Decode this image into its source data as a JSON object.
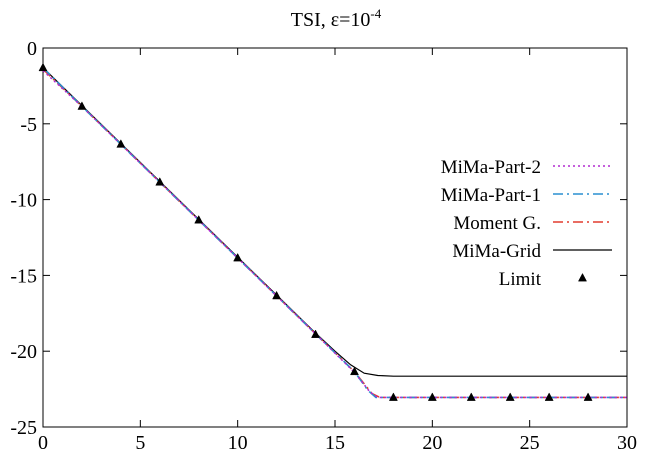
{
  "chart_data": {
    "type": "line",
    "title": {
      "base": "TSI, ε=10",
      "sup": "-4"
    },
    "xlabel": "",
    "ylabel": "",
    "xlim": [
      0,
      30
    ],
    "ylim": [
      -25,
      0
    ],
    "xticks": [
      0,
      5,
      10,
      15,
      20,
      25,
      30
    ],
    "yticks": [
      0,
      -5,
      -10,
      -15,
      -20,
      -25
    ],
    "grid": false,
    "legend_position": "right",
    "series": [
      {
        "name": "MiMa-Part-2",
        "color": "#b22bd0",
        "style": "dotted",
        "x": [
          0,
          2,
          4,
          6,
          8,
          10,
          12,
          14,
          16,
          16.8,
          17.2,
          20,
          25,
          30
        ],
        "y": [
          -1.5,
          -3.85,
          -6.35,
          -8.85,
          -11.35,
          -13.85,
          -16.35,
          -18.85,
          -21.4,
          -22.7,
          -23.05,
          -23.05,
          -23.05,
          -23.05
        ]
      },
      {
        "name": "MiMa-Part-1",
        "color": "#2a8fd0",
        "style": "dash-dot",
        "x": [
          0,
          2,
          4,
          6,
          8,
          10,
          12,
          14,
          16,
          16.7,
          17.1,
          20,
          25,
          30
        ],
        "y": [
          -1.3,
          -3.85,
          -6.35,
          -8.85,
          -11.35,
          -13.85,
          -16.35,
          -18.85,
          -21.35,
          -22.6,
          -23.05,
          -23.05,
          -23.05,
          -23.05
        ]
      },
      {
        "name": "Moment G.",
        "color": "#e23b2e",
        "style": "dash-dot",
        "x": [
          0,
          2,
          4,
          6,
          8,
          10,
          12,
          14,
          16,
          16.9,
          17.3,
          20,
          25,
          30
        ],
        "y": [
          -1.4,
          -3.85,
          -6.35,
          -8.85,
          -11.35,
          -13.85,
          -16.35,
          -18.85,
          -21.35,
          -22.8,
          -23.05,
          -23.05,
          -23.05,
          -23.05
        ]
      },
      {
        "name": "MiMa-Grid",
        "color": "#000000",
        "style": "solid",
        "x": [
          0,
          2,
          4,
          6,
          8,
          10,
          12,
          14,
          15,
          15.8,
          16.5,
          17.2,
          18,
          20,
          25,
          30
        ],
        "y": [
          -1.3,
          -3.8,
          -6.3,
          -8.8,
          -11.3,
          -13.8,
          -16.3,
          -18.8,
          -20.0,
          -20.9,
          -21.45,
          -21.6,
          -21.65,
          -21.65,
          -21.65,
          -21.65
        ]
      }
    ],
    "limit": {
      "name": "Limit",
      "marker": "triangle",
      "x": [
        0,
        2,
        4,
        6,
        8,
        10,
        12,
        14,
        16,
        18,
        20,
        22,
        24,
        26,
        28
      ],
      "y": [
        -1.3,
        -3.85,
        -6.35,
        -8.85,
        -11.35,
        -13.85,
        -16.35,
        -18.9,
        -21.35,
        -23.05,
        -23.05,
        -23.05,
        -23.05,
        -23.05,
        -23.05
      ]
    }
  }
}
